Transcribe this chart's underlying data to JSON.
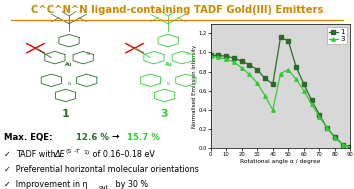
{
  "title": "C^C^N^N ligand-containing TADF Gold(III) Emitters",
  "title_color": "#cc8800",
  "bg_color": "#ffffff",
  "plot_bg_color": "#d8d8d8",
  "xlabel": "Rotational angle α / degree",
  "ylabel": "Normalised Emission Intensity",
  "xlim": [
    0,
    90
  ],
  "ylim": [
    0.0,
    1.3
  ],
  "yticks": [
    0.0,
    0.2,
    0.4,
    0.6,
    0.8,
    1.0,
    1.2
  ],
  "xticks": [
    0,
    10,
    20,
    30,
    40,
    50,
    60,
    70,
    80,
    90
  ],
  "curve1_x": [
    0,
    5,
    10,
    15,
    20,
    25,
    30,
    35,
    40,
    45,
    50,
    55,
    60,
    65,
    70,
    75,
    80,
    85,
    90
  ],
  "curve1_y": [
    0.97,
    0.97,
    0.96,
    0.94,
    0.91,
    0.87,
    0.82,
    0.73,
    0.67,
    1.16,
    1.12,
    0.85,
    0.67,
    0.5,
    0.35,
    0.21,
    0.12,
    0.04,
    0.01
  ],
  "curve3_x": [
    0,
    5,
    10,
    15,
    20,
    25,
    30,
    35,
    40,
    45,
    50,
    55,
    60,
    65,
    70,
    75,
    80,
    85,
    90
  ],
  "curve3_y": [
    0.96,
    0.95,
    0.93,
    0.9,
    0.84,
    0.77,
    0.68,
    0.55,
    0.4,
    0.78,
    0.82,
    0.72,
    0.6,
    0.46,
    0.33,
    0.21,
    0.11,
    0.04,
    0.01
  ],
  "curve1_color": "#2d6b2d",
  "curve3_color": "#33cc33",
  "curve1_marker": "s",
  "curve3_marker": "^",
  "curve1_label": "1",
  "curve3_label": "3",
  "mol1_color": "#2d6b2d",
  "mol3_color": "#33cc33",
  "red_color": "#dd0000",
  "eqe_label": "Max. EQE: ",
  "eqe_val1": "12.6 %",
  "eqe_arrow": " → ",
  "eqe_val2": "15.7 %",
  "check1": "✓  TADF with ΔE",
  "check1b": "(S",
  "check1c": "1",
  "check1d": "–T",
  "check1e": "1",
  "check1f": ")",
  "check1g": " of 0.16–0.18 eV",
  "check2": "✓  Preferential horizontal molecular orientations",
  "check3a": "✓  Improvement in η",
  "check3b": "out",
  "check3c": " by 30 %"
}
